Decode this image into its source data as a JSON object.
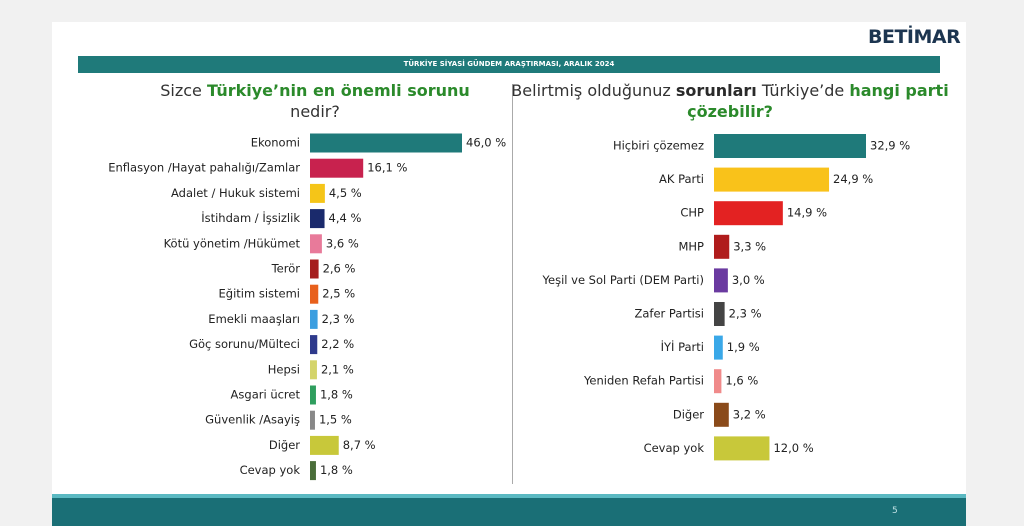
{
  "header": {
    "logo": "BETİMAR",
    "banner": "TÜRKİYE SİYASİ GÜNDEM ARAŞTIRMASI, ARALIK 2024",
    "page_number": "5"
  },
  "chart_data": [
    {
      "type": "bar",
      "orientation": "horizontal",
      "title": [
        {
          "text": "Sizce ",
          "style": "plain"
        },
        {
          "text": "Türkiye’nin en önemli sorunu",
          "style": "highlight"
        },
        {
          "text": " nedir?",
          "style": "plain"
        }
      ],
      "categories": [
        "Ekonomi",
        "Enflasyon /Hayat pahalığı/Zamlar",
        "Adalet / Hukuk sistemi",
        "İstihdam / İşsizlik",
        "Kötü yönetim /Hükümet",
        "Terör",
        "Eğitim sistemi",
        "Emekli maaşları",
        "Göç sorunu/Mülteci",
        "Hepsi",
        "Asgari ücret",
        "Güvenlik /Asayiş",
        "Diğer",
        "Cevap yok"
      ],
      "values": [
        46.0,
        16.1,
        4.5,
        4.4,
        3.6,
        2.6,
        2.5,
        2.3,
        2.2,
        2.1,
        1.8,
        1.5,
        8.7,
        1.8
      ],
      "value_labels": [
        "46,0 %",
        "16,1 %",
        "4,5 %",
        "4,4 %",
        "3,6 %",
        "2,6 %",
        "2,5 %",
        "2,3 %",
        "2,2 %",
        "2,1 %",
        "1,8 %",
        "1,5 %",
        "8,7 %",
        "1,8 %"
      ],
      "colors": [
        "#1f7a7a",
        "#c8224e",
        "#f5c518",
        "#1a2a6c",
        "#e87a9a",
        "#a51c1c",
        "#e8601c",
        "#3b9ee0",
        "#2e3a8c",
        "#d4d46a",
        "#2e9e5e",
        "#888888",
        "#c8c83a",
        "#4a6e3a"
      ]
    },
    {
      "type": "bar",
      "orientation": "horizontal",
      "title": [
        {
          "text": "Belirtmiş olduğunuz ",
          "style": "plain"
        },
        {
          "text": "sorunları",
          "style": "bold"
        },
        {
          "text": " Türkiye’de ",
          "style": "plain"
        },
        {
          "text": "hangi parti çözebilir?",
          "style": "highlight"
        }
      ],
      "categories": [
        "Hiçbiri çözemez",
        "AK Parti",
        "CHP",
        "MHP",
        "Yeşil ve Sol Parti (DEM Parti)",
        "Zafer Partisi",
        "İYİ Parti",
        "Yeniden Refah Partisi",
        "Diğer",
        "Cevap yok"
      ],
      "values": [
        32.9,
        24.9,
        14.9,
        3.3,
        3.0,
        2.3,
        1.9,
        1.6,
        3.2,
        12.0
      ],
      "value_labels": [
        "32,9 %",
        "24,9 %",
        "14,9 %",
        "3,3 %",
        "3,0 %",
        "2,3 %",
        "1,9 %",
        "1,6 %",
        "3,2 %",
        "12,0 %"
      ],
      "colors": [
        "#1f7a7a",
        "#f9c21a",
        "#e32222",
        "#b01c1c",
        "#6a3aa0",
        "#444444",
        "#3aa8e8",
        "#f08a8a",
        "#8a4a1a",
        "#c8c83a"
      ]
    }
  ]
}
